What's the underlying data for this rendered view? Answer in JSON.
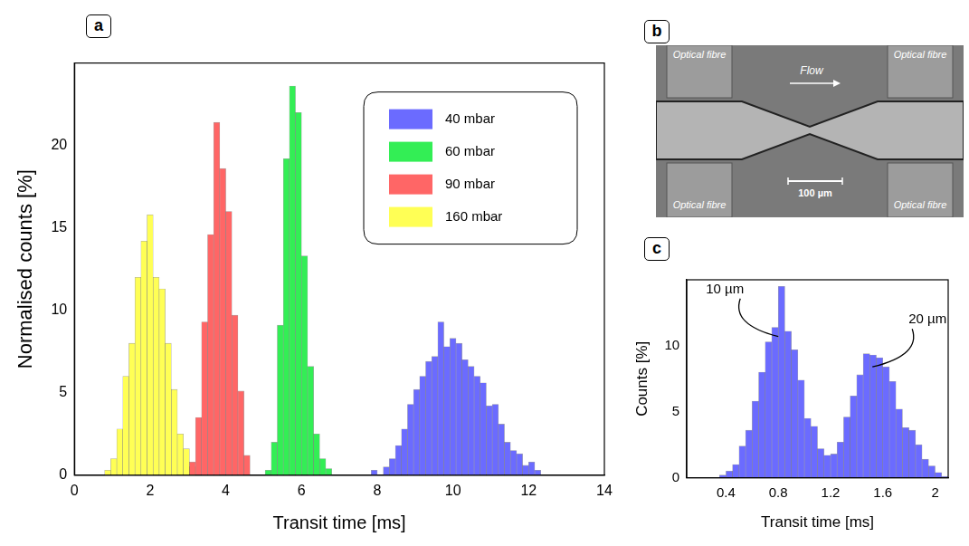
{
  "chart_data": [
    {
      "panel": "a",
      "type": "histogram",
      "x_label": "Transit time [ms]",
      "y_label": "Normalised counts [%]",
      "xlim": [
        0,
        14
      ],
      "xticks": [
        0,
        2,
        4,
        6,
        8,
        10,
        12,
        14
      ],
      "ylim": [
        0,
        25
      ],
      "yticks": [
        0,
        5,
        10,
        15,
        20
      ],
      "grid": false,
      "legend": "upper right",
      "series": [
        {
          "name": "40 mbar",
          "color": "#6b6bff",
          "bins": [
            7.84,
            8.0,
            8.16,
            8.32,
            8.48,
            8.64,
            8.8,
            8.96,
            9.12,
            9.28,
            9.44,
            9.6,
            9.76,
            9.92,
            10.08,
            10.24,
            10.4,
            10.56,
            10.72,
            10.88,
            11.04,
            11.2,
            11.36,
            11.52,
            11.68,
            11.84,
            12.0,
            12.16,
            12.32
          ],
          "values": [
            0.3,
            0,
            0.5,
            1.0,
            1.8,
            2.8,
            4.3,
            5.2,
            6.0,
            6.9,
            7.2,
            9.3,
            7.8,
            8.3,
            8.0,
            7.0,
            6.6,
            6.0,
            5.6,
            4.2,
            4.3,
            3.1,
            2.0,
            1.5,
            1.3,
            0.6,
            0.8,
            0.3
          ]
        },
        {
          "name": "60 mbar",
          "color": "#33ee55",
          "bins": [
            5.04,
            5.2,
            5.36,
            5.52,
            5.68,
            5.84,
            6.0,
            6.16,
            6.32,
            6.48,
            6.64,
            6.8
          ],
          "values": [
            0.3,
            2.0,
            9.1,
            19.2,
            23.6,
            22.0,
            13.3,
            6.6,
            2.5,
            1.0,
            0.4
          ]
        },
        {
          "name": "90 mbar",
          "color": "#ff6666",
          "bins": [
            3.04,
            3.2,
            3.36,
            3.52,
            3.68,
            3.84,
            4.0,
            4.16,
            4.32,
            4.48,
            4.64
          ],
          "values": [
            0.8,
            3.5,
            9.3,
            14.6,
            21.4,
            18.6,
            16.0,
            9.7,
            5.1,
            1.2
          ]
        },
        {
          "name": "160 mbar",
          "color": "#ffff55",
          "bins": [
            0.8,
            0.96,
            1.12,
            1.28,
            1.44,
            1.6,
            1.76,
            1.92,
            2.08,
            2.24,
            2.4,
            2.56,
            2.72,
            2.88,
            3.04,
            3.2
          ],
          "values": [
            0.3,
            1.0,
            2.8,
            6.0,
            8.0,
            12.0,
            14.2,
            15.8,
            12.0,
            11.3,
            8.0,
            5.2,
            2.5,
            1.6,
            0.5
          ]
        }
      ]
    },
    {
      "panel": "c",
      "type": "histogram",
      "x_label": "Transit time [ms]",
      "y_label": "Counts [%]",
      "xlim": [
        0.1,
        2.1
      ],
      "xticks": [
        0.4,
        0.8,
        1.2,
        1.6,
        2
      ],
      "ylim": [
        0,
        15
      ],
      "yticks": [
        0,
        5,
        10
      ],
      "grid": false,
      "color": "#6b6bff",
      "bins": [
        0.35,
        0.4,
        0.45,
        0.5,
        0.55,
        0.6,
        0.65,
        0.7,
        0.75,
        0.8,
        0.85,
        0.9,
        0.95,
        1.0,
        1.05,
        1.1,
        1.15,
        1.2,
        1.25,
        1.3,
        1.35,
        1.4,
        1.45,
        1.5,
        1.55,
        1.6,
        1.65,
        1.7,
        1.75,
        1.8,
        1.85,
        1.9,
        1.95,
        2.0,
        2.05,
        2.1
      ],
      "values": [
        0.2,
        0.5,
        1.0,
        2.4,
        3.6,
        5.8,
        8.0,
        10.3,
        11.4,
        14.5,
        11.1,
        9.7,
        7.4,
        4.5,
        3.9,
        2.2,
        1.7,
        1.8,
        2.7,
        4.6,
        6.2,
        7.8,
        9.4,
        9.3,
        9.1,
        8.4,
        7.3,
        5.2,
        3.8,
        3.6,
        2.5,
        1.4,
        0.9,
        0.4,
        0.1
      ],
      "annotations": [
        {
          "text": "10 µm",
          "x": 0.8,
          "y": 10.7
        },
        {
          "text": "20 µm",
          "x": 1.52,
          "y": 8.4
        }
      ]
    }
  ],
  "micrograph": {
    "panel": "b",
    "fibre_labels": [
      "Optical fibre",
      "Optical fibre",
      "Optical fibre",
      "Optical fibre"
    ],
    "flow": "Flow",
    "scale_bar": "100 µm"
  }
}
